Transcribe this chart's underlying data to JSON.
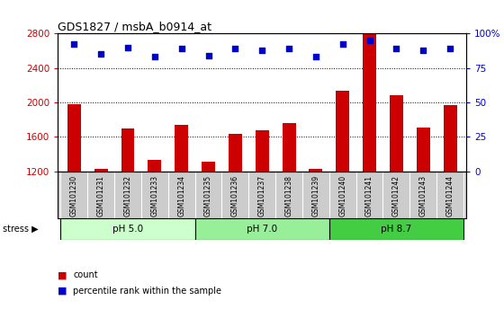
{
  "title": "GDS1827 / msbA_b0914_at",
  "samples": [
    "GSM101230",
    "GSM101231",
    "GSM101232",
    "GSM101233",
    "GSM101234",
    "GSM101235",
    "GSM101236",
    "GSM101237",
    "GSM101238",
    "GSM101239",
    "GSM101240",
    "GSM101241",
    "GSM101242",
    "GSM101243",
    "GSM101244"
  ],
  "counts": [
    1980,
    1230,
    1700,
    1330,
    1740,
    1310,
    1630,
    1680,
    1760,
    1230,
    2130,
    2800,
    2080,
    1710,
    1970
  ],
  "percentiles": [
    92,
    85,
    90,
    83,
    89,
    84,
    89,
    88,
    89,
    83,
    92,
    95,
    89,
    88,
    89
  ],
  "ylim_left": [
    1200,
    2800
  ],
  "ylim_right": [
    0,
    100
  ],
  "yticks_left": [
    1200,
    1600,
    2000,
    2400,
    2800
  ],
  "yticks_right": [
    0,
    25,
    50,
    75,
    100
  ],
  "grid_values": [
    1600,
    2000,
    2400
  ],
  "bar_color": "#cc0000",
  "dot_color": "#0000cc",
  "groups": [
    {
      "label": "pH 5.0",
      "start": 0,
      "end": 5,
      "color": "#ccffcc"
    },
    {
      "label": "pH 7.0",
      "start": 5,
      "end": 10,
      "color": "#99ee99"
    },
    {
      "label": "pH 8.7",
      "start": 10,
      "end": 15,
      "color": "#44cc44"
    }
  ],
  "bar_bottom": 1200,
  "legend_count_color": "#cc0000",
  "legend_pct_color": "#0000cc",
  "background_color": "#ffffff",
  "tick_area_color": "#cccccc"
}
